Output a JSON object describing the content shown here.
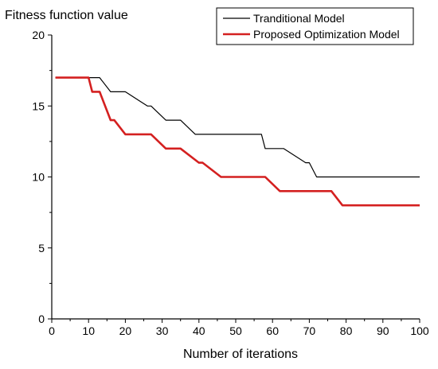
{
  "chart_data": {
    "type": "line",
    "title": "",
    "xlabel": "Number of iterations",
    "ylabel": "Fitness function value",
    "xlim": [
      0,
      100
    ],
    "ylim": [
      0,
      20
    ],
    "x_ticks": [
      0,
      10,
      20,
      30,
      40,
      50,
      60,
      70,
      80,
      90,
      100
    ],
    "y_ticks": [
      0,
      5,
      10,
      15,
      20
    ],
    "grid": false,
    "legend_position": "top-right",
    "series": [
      {
        "name": "Tranditional Model",
        "color": "#000000",
        "points": [
          [
            1,
            17
          ],
          [
            10,
            17
          ],
          [
            13,
            17
          ],
          [
            16,
            16
          ],
          [
            20,
            16
          ],
          [
            26,
            15
          ],
          [
            27,
            15
          ],
          [
            31,
            14
          ],
          [
            35,
            14
          ],
          [
            39,
            13
          ],
          [
            57,
            13
          ],
          [
            58,
            12
          ],
          [
            63,
            12
          ],
          [
            69,
            11
          ],
          [
            70,
            11
          ],
          [
            72,
            10
          ],
          [
            100,
            10
          ]
        ]
      },
      {
        "name": "Proposed Optimization Model",
        "color": "#d42020",
        "points": [
          [
            1,
            17
          ],
          [
            10,
            17
          ],
          [
            11,
            16
          ],
          [
            13,
            16
          ],
          [
            16,
            14
          ],
          [
            17,
            14
          ],
          [
            20,
            13
          ],
          [
            27,
            13
          ],
          [
            31,
            12
          ],
          [
            35,
            12
          ],
          [
            40,
            11
          ],
          [
            41,
            11
          ],
          [
            46,
            10
          ],
          [
            58,
            10
          ],
          [
            62,
            9
          ],
          [
            76,
            9
          ],
          [
            79,
            8
          ],
          [
            100,
            8
          ]
        ]
      }
    ]
  }
}
